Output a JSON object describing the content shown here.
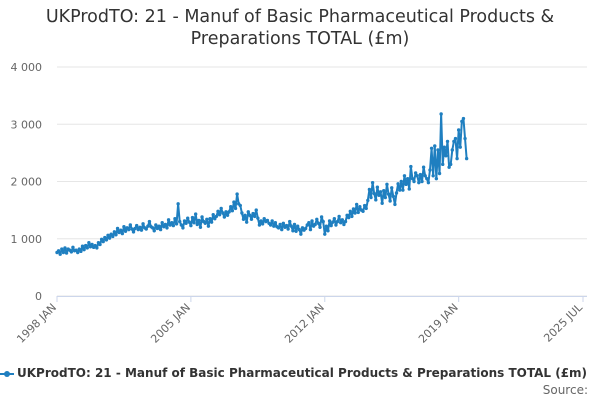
{
  "chart_data": {
    "type": "line",
    "title_lines": [
      "UKProdTO: 21 - Manuf of Basic Pharmaceutical Products &",
      "Preparations TOTAL (£m)"
    ],
    "xlabel": "",
    "ylabel": "",
    "x_range": [
      "1998 JAN",
      "2025 JUL"
    ],
    "x_tick_labels": [
      "1998 JAN",
      "2005 JAN",
      "2012 JAN",
      "2019 JAN",
      "2025 JUL"
    ],
    "ylim": [
      0,
      4000
    ],
    "y_ticks": [
      0,
      1000,
      2000,
      3000,
      4000
    ],
    "y_tick_labels": [
      "0",
      "1 000",
      "2 000",
      "3 000",
      "4 000"
    ],
    "grid": true,
    "legend_position": "bottom",
    "series": [
      {
        "name": "UKProdTO: 21 - Manuf of Basic Pharmaceutical Products & Preparations TOTAL (£m)",
        "color": "#1f7fc0",
        "frequency": "monthly",
        "values": [
          760,
          790,
          730,
          820,
          760,
          840,
          750,
          820,
          800,
          770,
          850,
          790,
          800,
          760,
          820,
          780,
          870,
          810,
          880,
          840,
          930,
          860,
          900,
          850,
          880,
          840,
          930,
          900,
          990,
          950,
          1020,
          980,
          1060,
          1010,
          1080,
          1040,
          1120,
          1070,
          1180,
          1110,
          1150,
          1090,
          1210,
          1130,
          1190,
          1160,
          1240,
          1170,
          1120,
          1180,
          1230,
          1160,
          1200,
          1150,
          1260,
          1190,
          1170,
          1220,
          1300,
          1210,
          1190,
          1140,
          1240,
          1180,
          1220,
          1160,
          1280,
          1210,
          1250,
          1190,
          1330,
          1240,
          1280,
          1230,
          1350,
          1260,
          1610,
          1300,
          1240,
          1190,
          1310,
          1270,
          1360,
          1290,
          1230,
          1370,
          1280,
          1430,
          1250,
          1320,
          1200,
          1380,
          1300,
          1270,
          1340,
          1220,
          1350,
          1290,
          1420,
          1350,
          1390,
          1480,
          1420,
          1530,
          1450,
          1380,
          1470,
          1410,
          1470,
          1560,
          1490,
          1640,
          1530,
          1780,
          1610,
          1580,
          1450,
          1340,
          1410,
          1290,
          1470,
          1410,
          1340,
          1440,
          1390,
          1500,
          1360,
          1240,
          1310,
          1260,
          1350,
          1300,
          1320,
          1270,
          1240,
          1310,
          1220,
          1280,
          1210,
          1190,
          1250,
          1160,
          1270,
          1200,
          1230,
          1170,
          1300,
          1220,
          1140,
          1250,
          1130,
          1220,
          1160,
          1080,
          1190,
          1150,
          1180,
          1240,
          1280,
          1160,
          1310,
          1220,
          1250,
          1340,
          1270,
          1200,
          1380,
          1300,
          1080,
          1220,
          1140,
          1310,
          1230,
          1290,
          1350,
          1240,
          1300,
          1390,
          1280,
          1330,
          1250,
          1300,
          1410,
          1370,
          1480,
          1390,
          1520,
          1450,
          1600,
          1460,
          1560,
          1500,
          1480,
          1580,
          1530,
          1670,
          1860,
          1720,
          1980,
          1790,
          1680,
          1900,
          1760,
          1820,
          1620,
          1840,
          1720,
          1950,
          1780,
          1660,
          1890,
          1740,
          1600,
          1800,
          1960,
          1850,
          2000,
          1850,
          2100,
          1950,
          2050,
          1870,
          2260,
          2050,
          2000,
          2150,
          2100,
          1980,
          2120,
          2000,
          2250,
          2100,
          2050,
          1980,
          2200,
          2580,
          2100,
          2620,
          2050,
          2550,
          2140,
          3180,
          2300,
          2600,
          2450,
          2700,
          2250,
          2300,
          2550,
          2700,
          2750,
          2400,
          2900,
          2600,
          3050,
          3100,
          2750,
          2400
        ]
      }
    ]
  },
  "footer": {
    "source_label": "Source:"
  }
}
